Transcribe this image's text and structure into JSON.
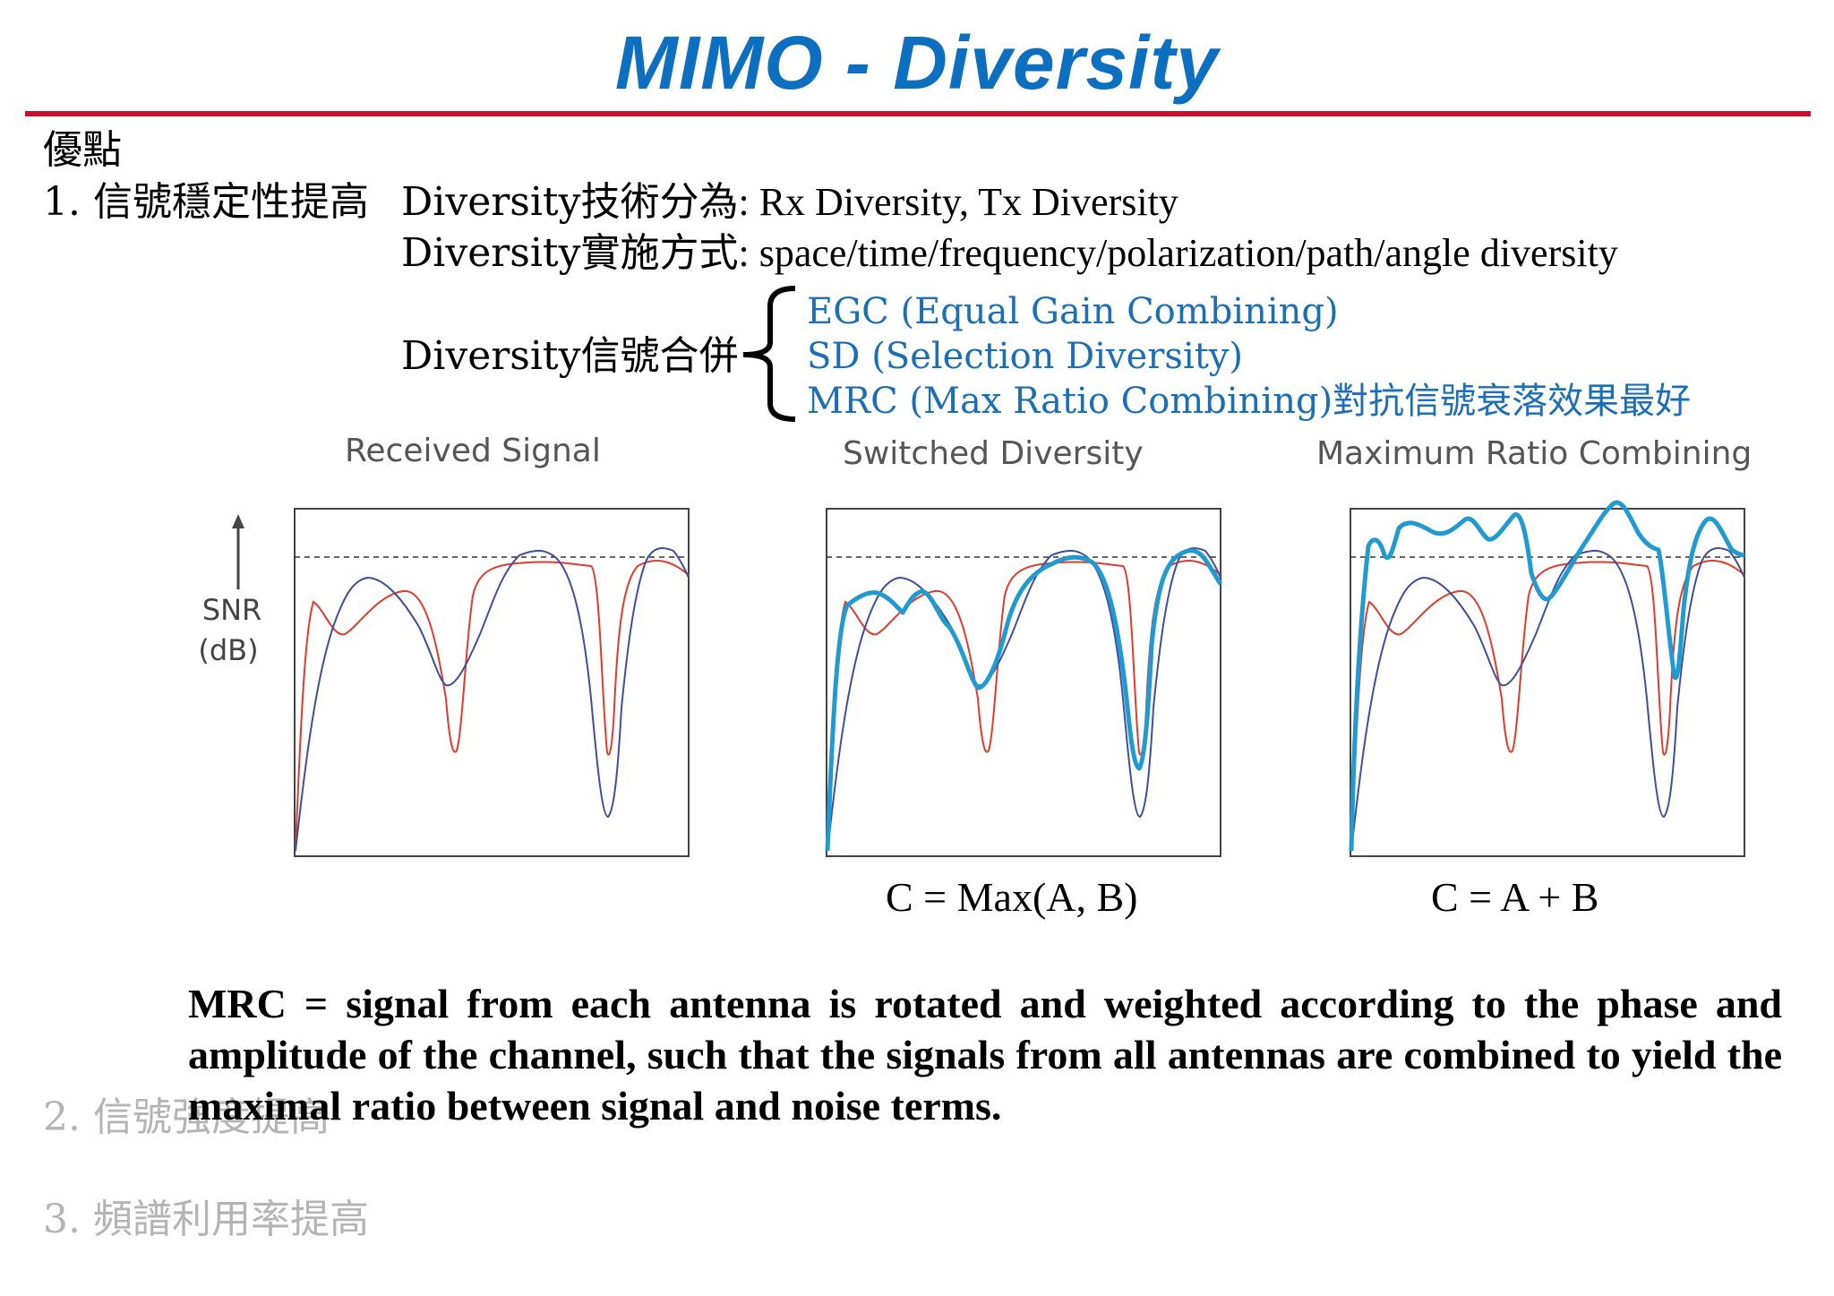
{
  "title": "MIMO - Diversity",
  "section_label": "優點",
  "points": {
    "p1": "1. 信號穩定性提高",
    "p2": "2. 信號強度提高",
    "p3": "3. 頻譜利用率提高"
  },
  "lines": {
    "types_label": "Diversity技術分為",
    "types_value": ": Rx Diversity, Tx Diversity",
    "methods_label": "Diversity實施方式",
    "methods_value": ": space/time/frequency/polarization/path/angle diversity",
    "combine_label": "Diversity信號合併"
  },
  "combining_methods": [
    {
      "name": "EGC (Equal Gain Combining)",
      "note": ""
    },
    {
      "name": "SD (Selection Diversity)",
      "note": ""
    },
    {
      "name": "MRC (Max Ratio Combining)",
      "note": "對抗信號衰落效果最好"
    }
  ],
  "axis": {
    "label_top": "SNR",
    "label_bottom": "(dB)"
  },
  "charts": [
    {
      "title": "Received Signal",
      "formula": ""
    },
    {
      "title": "Switched Diversity",
      "formula": "C = Max(A, B)"
    },
    {
      "title": "Maximum Ratio Combining",
      "formula": "C = A + B"
    }
  ],
  "colors": {
    "title": "#0d6fc0",
    "rule": "#c8102e",
    "signal_a": "#e53a2a",
    "signal_b": "#3d4f9e",
    "combined": "#1f9bd1",
    "method_text": "#1a6fb8"
  },
  "explanation": "MRC = signal from each antenna is rotated and weighted according to the phase and amplitude of the channel, such that the signals from all antennas are combined to yield the maximal ratio between signal and noise terms."
}
